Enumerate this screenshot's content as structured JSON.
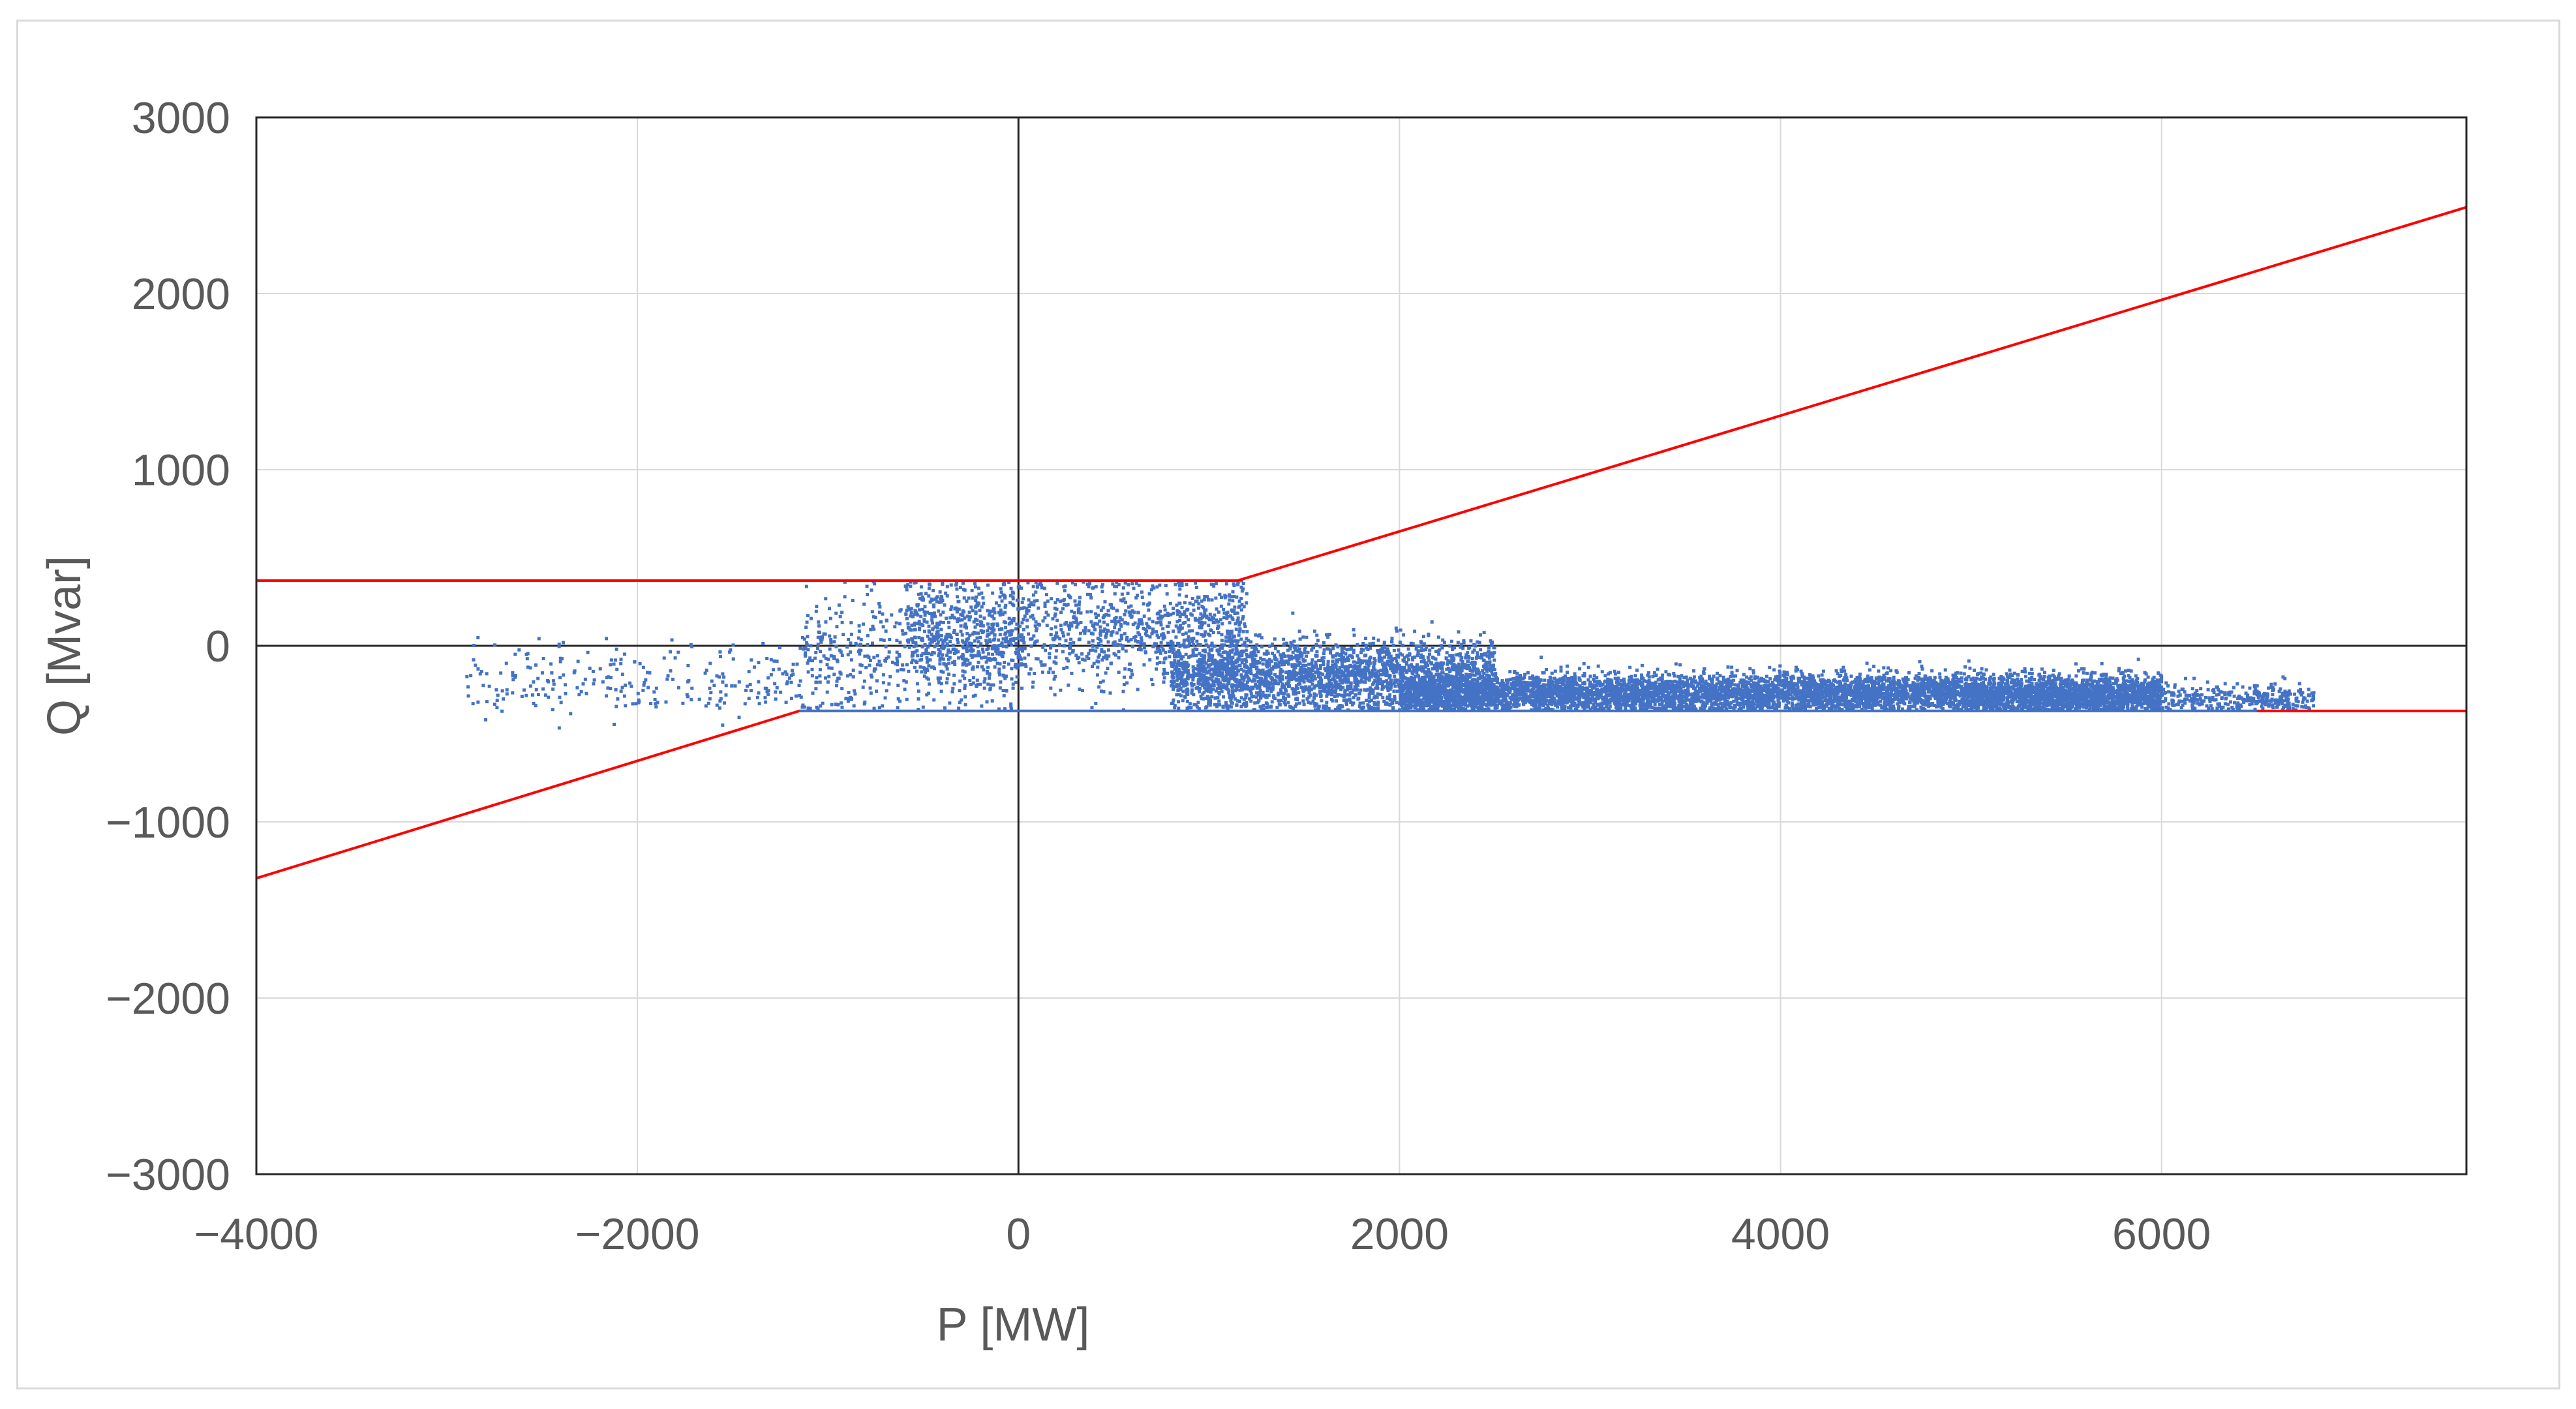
{
  "chart_data": {
    "type": "scatter",
    "title": "",
    "xlabel": "P [MW]",
    "ylabel": "Q [Mvar]",
    "xlim": [
      -4000,
      7600
    ],
    "ylim": [
      -3000,
      3000
    ],
    "x_ticks": [
      -4000,
      -2000,
      0,
      2000,
      4000,
      6000
    ],
    "y_ticks": [
      -3000,
      -2000,
      -1000,
      0,
      1000,
      2000,
      3000
    ],
    "x_tick_labels": [
      "−4000",
      "−2000",
      "0",
      "2000",
      "4000",
      "6000"
    ],
    "y_tick_labels": [
      "−3000",
      "−2000",
      "−1000",
      "0",
      "1000",
      "2000",
      "3000"
    ],
    "grid": true,
    "legend": "none",
    "series": [
      {
        "kind": "line",
        "color": "#ff0000",
        "x": [
          -4000,
          1150,
          7600
        ],
        "y": [
          370,
          370,
          2490
        ]
      },
      {
        "kind": "line",
        "color": "#ff0000",
        "x": [
          -4000,
          -1150,
          7600
        ],
        "y": [
          -1320,
          -370,
          -370
        ]
      },
      {
        "kind": "line",
        "color": "#4472c4",
        "x": [
          -1150,
          6500
        ],
        "y": [
          -370,
          -370
        ]
      },
      {
        "kind": "scatter",
        "color": "#4472c4",
        "clusters": [
          {
            "x_range": [
              -2900,
              -1150
            ],
            "y_center": -200,
            "y_spread": 170,
            "count": 260
          },
          {
            "x_range": [
              -1150,
              0
            ],
            "y_center": -50,
            "y_spread": 300,
            "count": 520
          },
          {
            "x_range": [
              -600,
              1200
            ],
            "y_center": 100,
            "y_spread": 260,
            "count": 1300
          },
          {
            "x_range": [
              800,
              2500
            ],
            "y_center": -170,
            "y_spread": 170,
            "count": 2400
          },
          {
            "x_range": [
              2000,
              6000
            ],
            "y_center": -270,
            "y_spread": 90,
            "count": 6200
          },
          {
            "x_range": [
              5000,
              6800
            ],
            "y_center": -300,
            "y_spread": 70,
            "count": 750
          }
        ]
      }
    ]
  }
}
